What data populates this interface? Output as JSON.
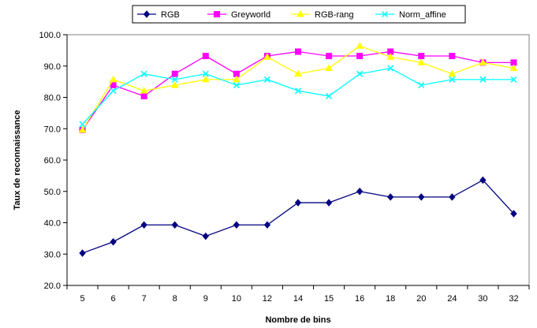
{
  "chart_data": {
    "type": "line",
    "xlabel": "Nombre de bins",
    "ylabel": "Taux de reconnaissance",
    "categories": [
      "5",
      "6",
      "7",
      "8",
      "9",
      "10",
      "12",
      "14",
      "15",
      "16",
      "18",
      "20",
      "24",
      "30",
      "32"
    ],
    "ylim": [
      20.0,
      100.0
    ],
    "yticks": [
      "20.0",
      "30.0",
      "40.0",
      "50.0",
      "60.0",
      "70.0",
      "80.0",
      "90.0",
      "100.0"
    ],
    "grid": false,
    "legend_position": "top-center",
    "series": [
      {
        "name": "RGB",
        "color": "#000080",
        "marker": "diamond",
        "values": [
          30.3,
          33.9,
          39.3,
          39.3,
          35.7,
          39.3,
          39.3,
          46.4,
          46.4,
          50.0,
          48.2,
          48.2,
          48.2,
          53.6,
          42.9
        ]
      },
      {
        "name": "Greyworld",
        "color": "#ff00ff",
        "marker": "square",
        "values": [
          69.6,
          83.9,
          80.4,
          87.5,
          93.2,
          87.5,
          93.2,
          94.6,
          93.2,
          93.2,
          94.6,
          93.2,
          93.2,
          91.1,
          91.1
        ]
      },
      {
        "name": "RGB-rang",
        "color": "#ffff00",
        "marker": "triangle",
        "values": [
          69.6,
          85.7,
          82.1,
          83.9,
          85.7,
          85.7,
          92.9,
          87.5,
          89.3,
          96.4,
          92.9,
          91.1,
          87.5,
          91.1,
          89.3
        ]
      },
      {
        "name": "Norm_affine",
        "color": "#00ffff",
        "marker": "x",
        "values": [
          71.4,
          82.1,
          87.5,
          85.7,
          87.5,
          83.9,
          85.7,
          82.1,
          80.4,
          87.5,
          89.3,
          83.9,
          85.7,
          85.7,
          85.7
        ]
      }
    ]
  }
}
